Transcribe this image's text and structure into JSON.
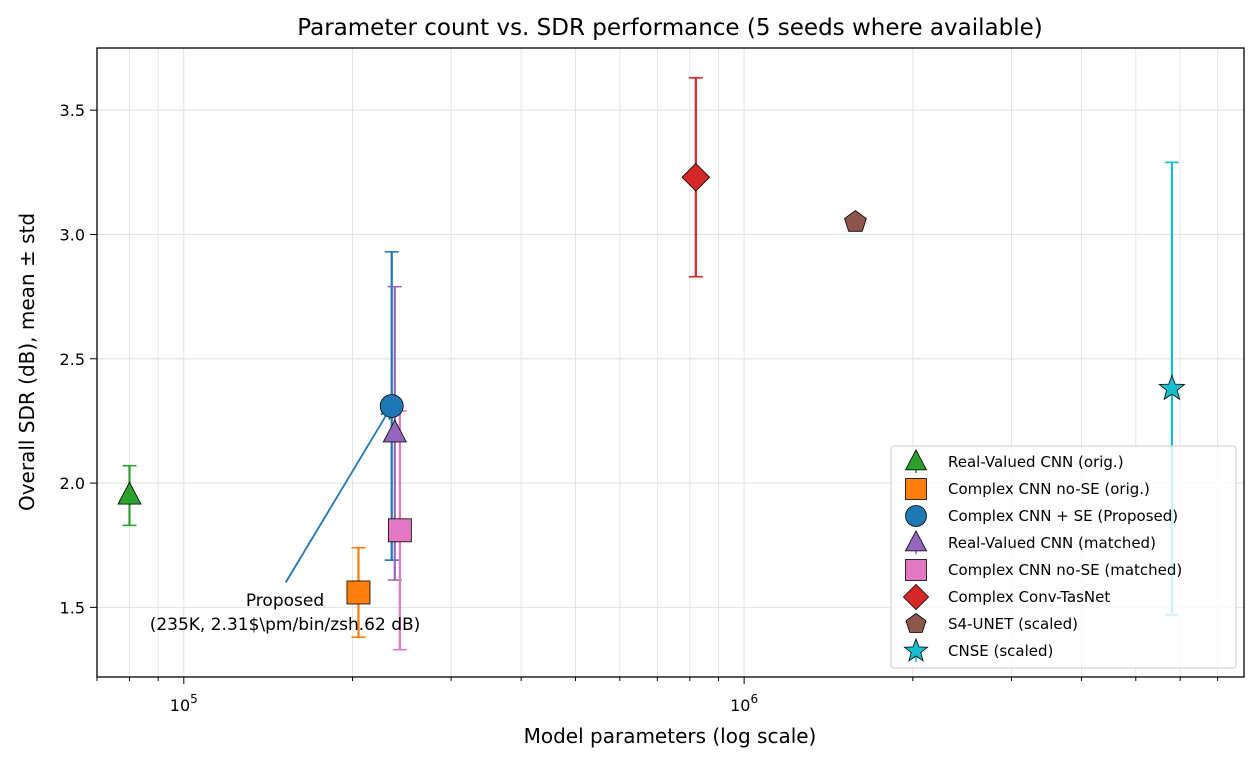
{
  "chart_data": {
    "type": "scatter",
    "title": "Parameter count vs. SDR performance (5 seeds where available)",
    "xlabel": "Model parameters (log scale)",
    "ylabel": "Overall SDR (dB), mean ± std",
    "xscale": "log",
    "xlim": [
      70000,
      7800000
    ],
    "ylim": [
      1.22,
      3.75
    ],
    "x_ticks": [
      {
        "value": 100000,
        "base": "10",
        "exp": "5"
      },
      {
        "value": 1000000,
        "base": "10",
        "exp": "6"
      }
    ],
    "y_ticks": [
      1.5,
      2.0,
      2.5,
      3.0,
      3.5
    ],
    "y_tick_labels": [
      "1.5",
      "2.0",
      "2.5",
      "3.0",
      "3.5"
    ],
    "grid": true,
    "legend_position": "lower-right",
    "series": [
      {
        "name": "Real-Valued CNN (orig.)",
        "x": 80000,
        "y": 1.95,
        "std": 0.12,
        "marker": "triangle",
        "color": "#2ca02c"
      },
      {
        "name": "Complex CNN no-SE (orig.)",
        "x": 205000,
        "y": 1.56,
        "std": 0.18,
        "marker": "square",
        "color": "#ff7f0e"
      },
      {
        "name": "Complex CNN + SE (Proposed)",
        "x": 235000,
        "y": 2.31,
        "std": 0.62,
        "marker": "circle",
        "color": "#1f77b4"
      },
      {
        "name": "Real-Valued CNN (matched)",
        "x": 238000,
        "y": 2.2,
        "std": 0.59,
        "marker": "triangle",
        "color": "#9467bd"
      },
      {
        "name": "Complex CNN no-SE (matched)",
        "x": 243000,
        "y": 1.81,
        "std": 0.48,
        "marker": "square",
        "color": "#e377c2"
      },
      {
        "name": "Complex Conv-TasNet",
        "x": 820000,
        "y": 3.23,
        "std": 0.4,
        "marker": "diamond",
        "color": "#d62728"
      },
      {
        "name": "S4-UNET (scaled)",
        "x": 1580000,
        "y": 3.05,
        "std": null,
        "marker": "pentagon",
        "color": "#8c564b"
      },
      {
        "name": "CNSE (scaled)",
        "x": 5800000,
        "y": 2.38,
        "std": 0.91,
        "marker": "star",
        "color": "#17becf"
      }
    ],
    "annotation": {
      "line1": "Proposed",
      "line2": "(235K, 2.31$\\pm/bin/zsh.62 dB)",
      "arrow_from": {
        "x": 152000,
        "y": 1.6
      },
      "arrow_to": {
        "x": 235000,
        "y": 2.31
      }
    }
  }
}
